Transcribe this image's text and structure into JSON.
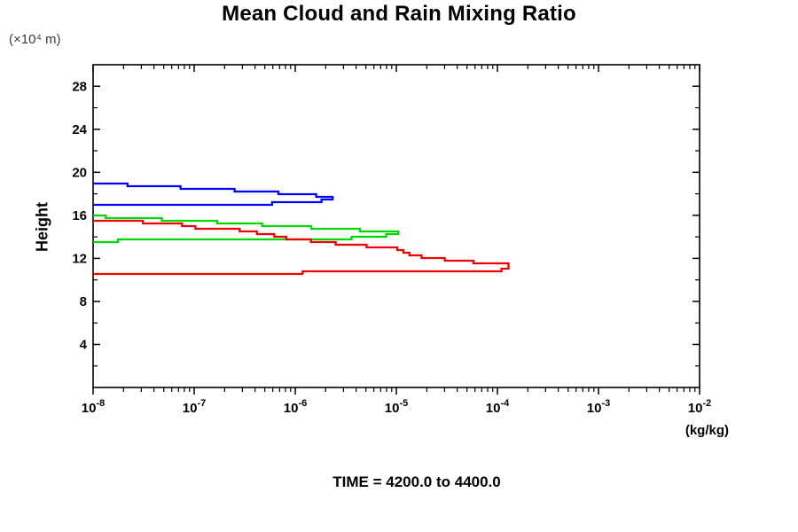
{
  "chart_data": {
    "type": "line",
    "title": "Mean Cloud and Rain Mixing Ratio",
    "ylabel": "Height",
    "ylabel_unit": "(×10⁴ m)",
    "xlabel_unit": "(kg/kg)",
    "annotation": "TIME = 4200.0 to 4400.0",
    "x_scale": "log10",
    "x_tick_base": "10",
    "x_axis_exponent_range": [
      -8,
      -2
    ],
    "x_major_tick_exponents": [
      -8,
      -7,
      -6,
      -5,
      -4,
      -3,
      -2
    ],
    "ylim": [
      0,
      30
    ],
    "y_major_ticks": [
      4,
      8,
      12,
      16,
      20,
      24,
      28
    ],
    "y_minor_ticks": [
      2,
      6,
      10,
      14,
      18,
      22,
      26
    ],
    "grid": false,
    "legend": "none",
    "points_format": "[log10(mixing_ratio kg/kg), height in 10^4 m]",
    "series": [
      {
        "name": "blue-profile",
        "color": "#0000ff",
        "peak": {
          "value_log10": -5.63,
          "height": 17.5
        },
        "points": [
          [
            -8.0,
            18.9
          ],
          [
            -7.93,
            19.05
          ],
          [
            -7.87,
            18.85
          ],
          [
            -7.72,
            18.9
          ],
          [
            -7.6,
            18.75
          ],
          [
            -7.32,
            18.66
          ],
          [
            -6.95,
            18.5
          ],
          [
            -6.73,
            18.42
          ],
          [
            -6.6,
            18.28
          ],
          [
            -6.23,
            18.1
          ],
          [
            -5.85,
            17.85
          ],
          [
            -5.68,
            17.62
          ],
          [
            -5.63,
            17.45
          ],
          [
            -5.74,
            17.25
          ],
          [
            -6.29,
            17.06
          ],
          [
            -6.93,
            16.93
          ],
          [
            -8.0,
            16.88
          ]
        ]
      },
      {
        "name": "green-profile",
        "color": "#00d800",
        "peak": {
          "value_log10": -4.98,
          "height": 14.27
        },
        "points": [
          [
            -8.0,
            15.9
          ],
          [
            -7.5,
            15.68
          ],
          [
            -6.9,
            15.42
          ],
          [
            -6.2,
            15.05
          ],
          [
            -5.6,
            14.75
          ],
          [
            -5.3,
            14.55
          ],
          [
            -5.05,
            14.4
          ],
          [
            -4.98,
            14.27
          ],
          [
            -5.1,
            14.05
          ],
          [
            -5.5,
            13.85
          ],
          [
            -6.3,
            13.75
          ],
          [
            -7.2,
            13.68
          ],
          [
            -8.0,
            13.62
          ]
        ]
      },
      {
        "name": "red-profile",
        "color": "#ee0000",
        "peak": {
          "value_log10": -3.89,
          "height": 11.15
        },
        "points": [
          [
            -8.0,
            15.6
          ],
          [
            -7.7,
            15.45
          ],
          [
            -7.12,
            15.12
          ],
          [
            -7.05,
            14.88
          ],
          [
            -6.55,
            14.6
          ],
          [
            -6.15,
            13.95
          ],
          [
            -5.6,
            13.35
          ],
          [
            -5.05,
            12.95
          ],
          [
            -4.93,
            12.5
          ],
          [
            -4.75,
            12.12
          ],
          [
            -4.35,
            11.72
          ],
          [
            -3.95,
            11.42
          ],
          [
            -3.89,
            11.15
          ],
          [
            -3.96,
            10.85
          ],
          [
            -4.5,
            10.72
          ],
          [
            -6.3,
            10.66
          ],
          [
            -8.0,
            10.63
          ]
        ]
      }
    ]
  },
  "colors": {
    "axis": "#000000",
    "background": "#ffffff"
  }
}
